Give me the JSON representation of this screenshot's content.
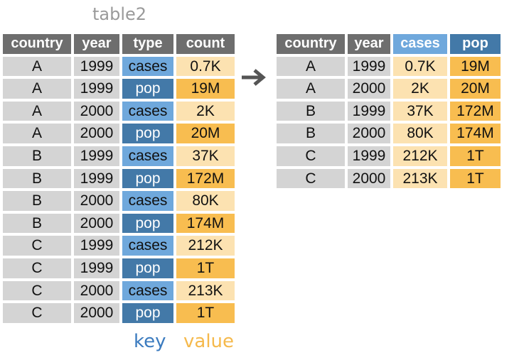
{
  "title": "table2",
  "colors": {
    "header_bg": "#6e6e6e",
    "id_cell": "#d4d4d4",
    "key_light": "#6fa8dc",
    "key_dark": "#4379a8",
    "value_light": "#fce2b1",
    "value_dark": "#f8bd50"
  },
  "left_table": {
    "headers": [
      "country",
      "year",
      "type",
      "count"
    ],
    "rows": [
      [
        "A",
        "1999",
        "cases",
        "0.7K"
      ],
      [
        "A",
        "1999",
        "pop",
        "19M"
      ],
      [
        "A",
        "2000",
        "cases",
        "2K"
      ],
      [
        "A",
        "2000",
        "pop",
        "20M"
      ],
      [
        "B",
        "1999",
        "cases",
        "37K"
      ],
      [
        "B",
        "1999",
        "pop",
        "172M"
      ],
      [
        "B",
        "2000",
        "cases",
        "80K"
      ],
      [
        "B",
        "2000",
        "pop",
        "174M"
      ],
      [
        "C",
        "1999",
        "cases",
        "212K"
      ],
      [
        "C",
        "1999",
        "pop",
        "1T"
      ],
      [
        "C",
        "2000",
        "cases",
        "213K"
      ],
      [
        "C",
        "2000",
        "pop",
        "1T"
      ]
    ]
  },
  "right_table": {
    "headers": [
      "country",
      "year",
      "cases",
      "pop"
    ],
    "rows": [
      [
        "A",
        "1999",
        "0.7K",
        "19M"
      ],
      [
        "A",
        "2000",
        "2K",
        "20M"
      ],
      [
        "B",
        "1999",
        "37K",
        "172M"
      ],
      [
        "B",
        "2000",
        "80K",
        "174M"
      ],
      [
        "C",
        "1999",
        "212K",
        "1T"
      ],
      [
        "C",
        "2000",
        "213K",
        "1T"
      ]
    ]
  },
  "labels": {
    "key": "key",
    "value": "value"
  }
}
